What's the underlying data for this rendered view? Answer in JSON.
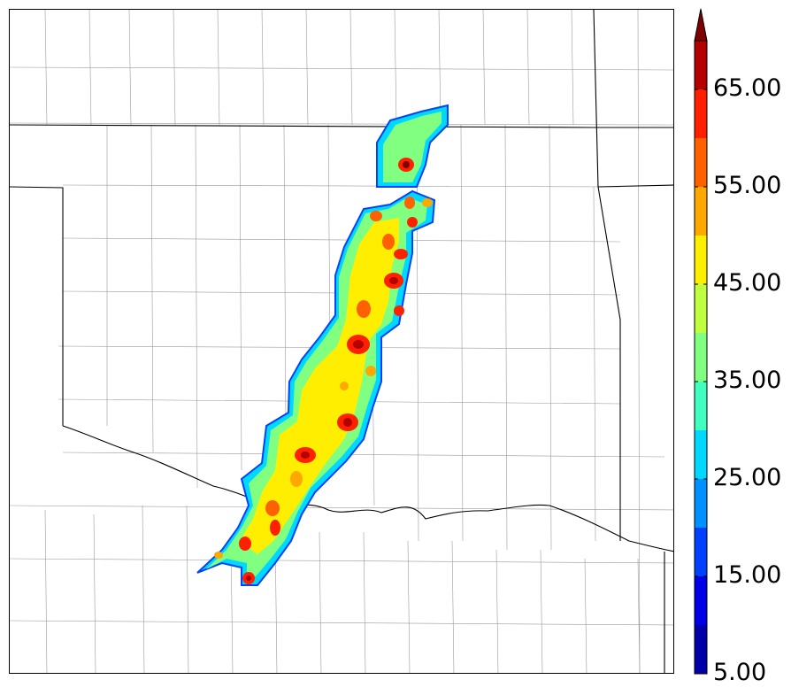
{
  "colorbar": {
    "tick_labels": [
      "5.00",
      "15.00",
      "25.00",
      "35.00",
      "45.00",
      "55.00",
      "65.00"
    ],
    "tick_values": [
      5,
      15,
      25,
      35,
      45,
      55,
      65
    ],
    "min": 5,
    "max": 70,
    "extend": "max",
    "levels": [
      5,
      10,
      15,
      20,
      25,
      30,
      35,
      40,
      45,
      50,
      55,
      60,
      65,
      70
    ],
    "colors": [
      "#0000a8",
      "#0000e6",
      "#0040ff",
      "#0090ff",
      "#00d8ff",
      "#40ffc0",
      "#80ff80",
      "#c0ff40",
      "#ffee00",
      "#ffa800",
      "#ff6000",
      "#ff2000",
      "#b40000",
      "#7f0000"
    ],
    "extend_color": "#7f0000"
  },
  "map": {
    "field_colors": {
      "background": "#ffffff",
      "state_border": "#000000",
      "county_border": "#9a9a9a"
    }
  }
}
